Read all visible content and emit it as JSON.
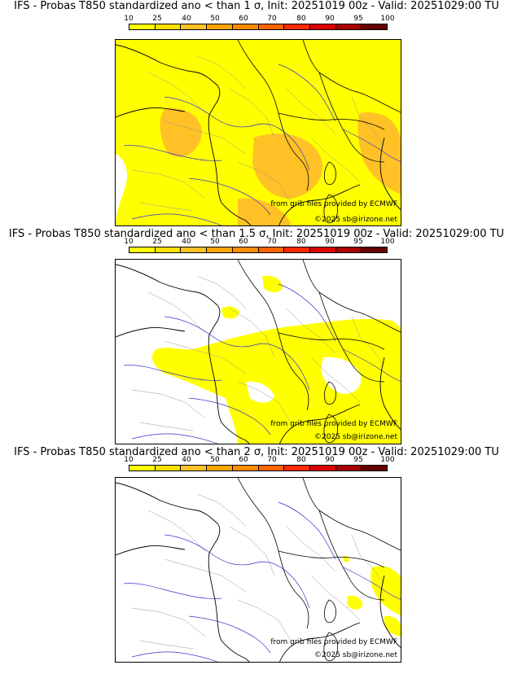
{
  "colorbar": {
    "ticks": [
      "10",
      "25",
      "40",
      "50",
      "60",
      "70",
      "80",
      "90",
      "95",
      "100"
    ],
    "colors": [
      "#ffff00",
      "#ffe000",
      "#ffc125",
      "#ffa500",
      "#ff8c00",
      "#ff6600",
      "#ff2a00",
      "#dd0000",
      "#aa0000",
      "#660000"
    ]
  },
  "colors": {
    "probability_fill": "#ffff00",
    "probability_fill_high": "#ffc125",
    "rivers": "#3333cc",
    "borders": "#000000",
    "admin": "#999999"
  },
  "panels": [
    {
      "title": "IFS - Probas T850  standardized ano < than 1 σ, Init: 20251019 00z - Valid: 20251029:00 TU",
      "credit_grib": "from grib files provided by ECMWF",
      "credit_copy": "©2025 sb@irizone.net",
      "coverage": "most"
    },
    {
      "title": "IFS - Probas T850  standardized ano < than 1.5 σ, Init: 20251019 00z - Valid: 20251029:00 TU",
      "credit_grib": "from grib files provided by ECMWF",
      "credit_copy": "©2025 sb@irizone.net",
      "coverage": "partial"
    },
    {
      "title": "IFS - Probas T850  standardized ano < than 2 σ, Init: 20251019 00z - Valid: 20251029:00 TU",
      "credit_grib": "from grib files provided by ECMWF",
      "credit_copy": "©2025 sb@irizone.net",
      "coverage": "small"
    }
  ]
}
